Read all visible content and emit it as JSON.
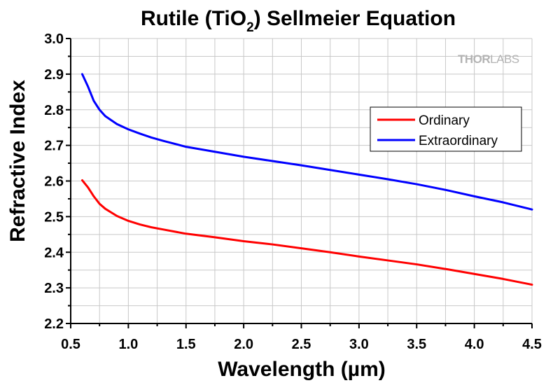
{
  "chart_data": {
    "type": "line",
    "title": "Rutile (TiO2) Sellmeier Equation",
    "title_parts": {
      "main": "Rutile (TiO",
      "subscript": "2",
      "tail": ") Sellmeier Equation"
    },
    "xlabel": "Wavelength (µm)",
    "ylabel": "Refractive Index",
    "xlim": [
      0.5,
      4.5
    ],
    "ylim": [
      2.2,
      3.0
    ],
    "xticks": [
      0.5,
      1.0,
      1.5,
      2.0,
      2.5,
      3.0,
      3.5,
      4.0,
      4.5
    ],
    "xtick_labels": [
      "0.5",
      "1.0",
      "1.5",
      "2.0",
      "2.5",
      "3.0",
      "3.5",
      "4.0",
      "4.5"
    ],
    "yticks": [
      2.2,
      2.3,
      2.4,
      2.5,
      2.6,
      2.7,
      2.8,
      2.9,
      3.0
    ],
    "ytick_labels": [
      "2.2",
      "2.3",
      "2.4",
      "2.5",
      "2.6",
      "2.7",
      "2.8",
      "2.9",
      "3.0"
    ],
    "grid": true,
    "legend_position": "top-right",
    "series": [
      {
        "name": "Ordinary",
        "color": "#ff0000",
        "x": [
          0.6,
          0.65,
          0.7,
          0.75,
          0.8,
          0.9,
          1.0,
          1.1,
          1.2,
          1.3,
          1.5,
          1.75,
          2.0,
          2.25,
          2.5,
          2.75,
          3.0,
          3.25,
          3.5,
          3.75,
          4.0,
          4.25,
          4.5
        ],
        "y": [
          2.602,
          2.582,
          2.557,
          2.536,
          2.522,
          2.502,
          2.488,
          2.478,
          2.47,
          2.464,
          2.452,
          2.442,
          2.431,
          2.422,
          2.411,
          2.4,
          2.388,
          2.377,
          2.366,
          2.353,
          2.339,
          2.325,
          2.309
        ]
      },
      {
        "name": "Extraordinary",
        "color": "#0000ff",
        "x": [
          0.6,
          0.65,
          0.7,
          0.75,
          0.8,
          0.9,
          1.0,
          1.1,
          1.2,
          1.3,
          1.5,
          1.75,
          2.0,
          2.25,
          2.5,
          2.75,
          3.0,
          3.25,
          3.5,
          3.75,
          4.0,
          4.25,
          4.5
        ],
        "y": [
          2.9,
          2.865,
          2.825,
          2.8,
          2.782,
          2.76,
          2.745,
          2.733,
          2.722,
          2.713,
          2.696,
          2.682,
          2.668,
          2.656,
          2.644,
          2.631,
          2.618,
          2.605,
          2.591,
          2.575,
          2.557,
          2.54,
          2.52
        ]
      }
    ]
  },
  "brand": {
    "thor": "THOR",
    "labs": "LABS"
  },
  "colors": {
    "grid": "#c8c8c8",
    "axis": "#000000",
    "background": "#ffffff"
  }
}
